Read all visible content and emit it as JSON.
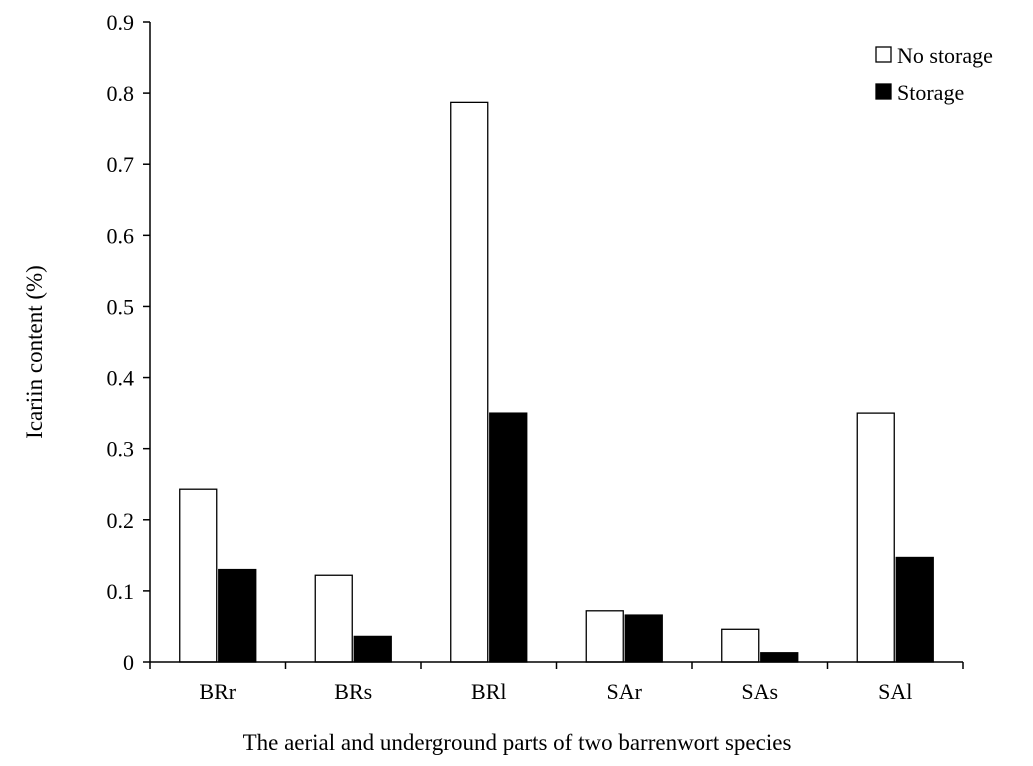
{
  "chart_data": {
    "type": "bar",
    "title": "",
    "xlabel": "The aerial and underground parts of two barrenwort species",
    "ylabel": "Icariin content (%)",
    "categories": [
      "BRr",
      "BRs",
      "BRl",
      "SAr",
      "SAs",
      "SAl"
    ],
    "series": [
      {
        "name": "No storage",
        "values": [
          0.243,
          0.122,
          0.787,
          0.072,
          0.046,
          0.35
        ],
        "fill": "#ffffff"
      },
      {
        "name": "Storage",
        "values": [
          0.13,
          0.036,
          0.35,
          0.066,
          0.013,
          0.147
        ],
        "fill": "#000000"
      }
    ],
    "ylim": [
      0,
      0.9
    ],
    "yticks": [
      "0",
      "0.1",
      "0.2",
      "0.3",
      "0.4",
      "0.5",
      "0.6",
      "0.7",
      "0.8",
      "0.9"
    ],
    "grid": false,
    "legend": "top-right"
  }
}
